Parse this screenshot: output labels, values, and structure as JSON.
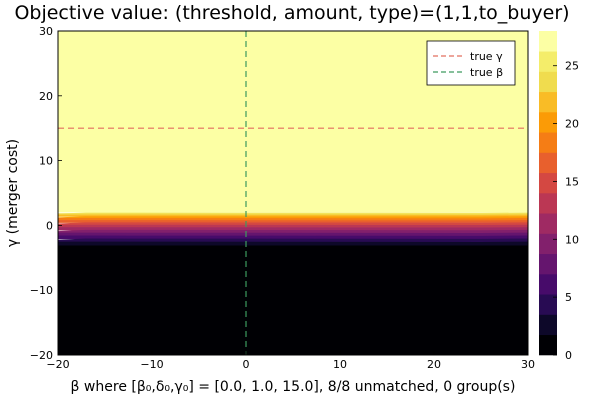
{
  "chart_data": {
    "type": "heatmap",
    "title": "Objective value: (threshold, amount, type)=(1,1,to_buyer)",
    "xlabel": "β where [β₀,δ₀,γ₀] = [0.0, 1.0, 15.0], 8/8 unmatched, 0 group(s)",
    "ylabel": "γ (merger cost)",
    "xlim": [
      -20,
      30
    ],
    "ylim": [
      -20,
      30
    ],
    "xticks": [
      -20,
      -10,
      0,
      10,
      20,
      30
    ],
    "yticks": [
      -20,
      -10,
      0,
      10,
      20,
      30
    ],
    "xtick_labels": [
      "−20",
      "−10",
      "0",
      "10",
      "20",
      "30"
    ],
    "ytick_labels": [
      "−20",
      "−10",
      "0",
      "10",
      "20",
      "30"
    ],
    "colorbar": {
      "range": [
        0,
        28
      ],
      "ticks": [
        0,
        5,
        10,
        15,
        20,
        25
      ],
      "tick_labels": [
        "0",
        "5",
        "10",
        "15",
        "20",
        "25"
      ],
      "levels": 16,
      "colormap": "inferno"
    },
    "surface": {
      "description_levels": "objective ≈ 0 for γ below about -3, rising steeply through the band -3 < γ < 2, and ≈ 28 for γ above about 2",
      "low_region_top_gamma": -3,
      "high_region_bottom_gamma": 2,
      "low_value": 0,
      "high_value": 28
    },
    "reference_lines": [
      {
        "name": "true γ",
        "orientation": "horizontal",
        "value": 15,
        "color": "#e26f5f",
        "style": "dashed"
      },
      {
        "name": "true β",
        "orientation": "vertical",
        "value": 0,
        "color": "#3d9a5f",
        "style": "dashed"
      }
    ],
    "legend": {
      "position": "top-right",
      "entries": [
        "true γ",
        "true β"
      ]
    },
    "grid": false
  }
}
